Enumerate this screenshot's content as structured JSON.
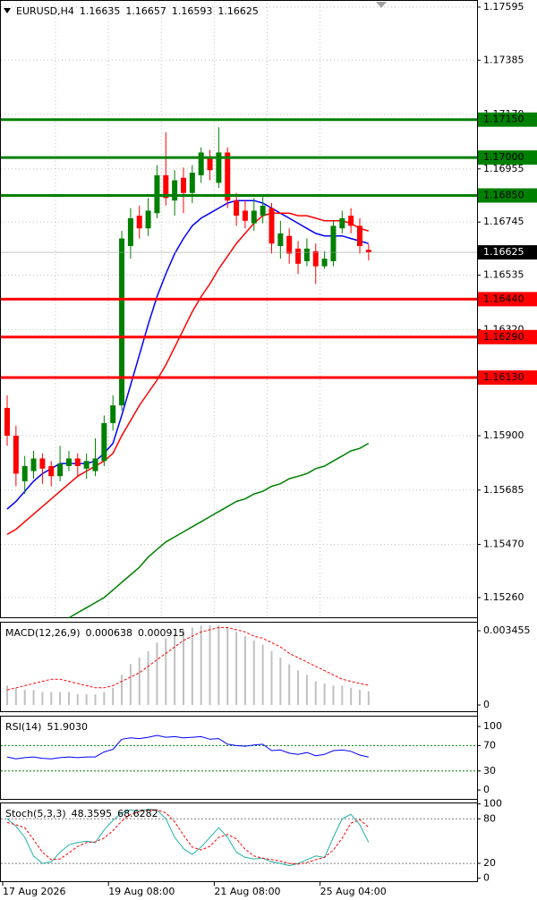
{
  "chart_data": [
    {
      "type": "candlestick",
      "title": "EURUSD,H4",
      "categories": [
        "17 Aug 2026",
        null,
        null,
        null,
        null,
        null,
        null,
        null,
        null,
        null,
        null,
        null,
        "19 Aug 08:00",
        null,
        null,
        null,
        null,
        null,
        null,
        null,
        null,
        null,
        null,
        null,
        "21 Aug 08:00",
        null,
        null,
        null,
        null,
        null,
        null,
        null,
        null,
        null,
        null,
        null,
        "25 Aug 04:00",
        null,
        null,
        null,
        null,
        null
      ],
      "ohlc": {
        "open": [
          1.1601,
          1.159,
          1.1572,
          1.1576,
          1.1581,
          1.1578,
          1.1574,
          1.1578,
          1.1581,
          1.1577,
          1.1576,
          1.158,
          1.1595,
          1.1602,
          1.1665,
          1.1677,
          1.1672,
          1.1678,
          1.1693,
          1.1683,
          1.1692,
          1.1686,
          1.1693,
          1.17,
          1.169,
          1.1702,
          1.1683,
          1.1679,
          1.1674,
          1.1677,
          1.168,
          1.1665,
          1.1669,
          1.1664,
          1.1659,
          1.1663,
          1.1657,
          1.1659,
          1.1672,
          1.1677,
          1.1673,
          1.16635
        ],
        "high": [
          1.1606,
          1.1594,
          1.1582,
          1.1584,
          1.1583,
          1.158,
          1.1586,
          1.1584,
          1.1583,
          1.1583,
          1.1589,
          1.1598,
          1.1606,
          1.1671,
          1.168,
          1.1681,
          1.1684,
          1.1697,
          1.171,
          1.1695,
          1.1696,
          1.1697,
          1.1704,
          1.1703,
          1.1712,
          1.1704,
          1.1686,
          1.1683,
          1.1684,
          1.1685,
          1.1682,
          1.1675,
          1.1672,
          1.1667,
          1.1668,
          1.1666,
          1.1663,
          1.1675,
          1.1679,
          1.168,
          1.1676,
          1.16657
        ],
        "low": [
          1.1586,
          1.157,
          1.1567,
          1.1573,
          1.1571,
          1.157,
          1.1572,
          1.1576,
          1.1574,
          1.1573,
          1.1574,
          1.1578,
          1.1592,
          1.16,
          1.166,
          1.1668,
          1.1669,
          1.1676,
          1.1681,
          1.1677,
          1.1678,
          1.1682,
          1.169,
          1.1691,
          1.1688,
          1.168,
          1.1673,
          1.1672,
          1.1671,
          1.1674,
          1.1662,
          1.166,
          1.1658,
          1.1654,
          1.1657,
          1.165,
          1.1656,
          1.1657,
          1.167,
          1.167,
          1.1662,
          1.16593
        ],
        "close": [
          1.159,
          1.1575,
          1.1578,
          1.1581,
          1.1577,
          1.1574,
          1.1579,
          1.1581,
          1.1578,
          1.158,
          1.1581,
          1.1595,
          1.1602,
          1.1668,
          1.1676,
          1.1672,
          1.1679,
          1.1693,
          1.1684,
          1.1691,
          1.1686,
          1.1694,
          1.1702,
          1.1695,
          1.1702,
          1.1683,
          1.1677,
          1.1675,
          1.1679,
          1.1681,
          1.1666,
          1.167,
          1.1662,
          1.1658,
          1.1664,
          1.1657,
          1.166,
          1.1673,
          1.1676,
          1.1673,
          1.1665,
          1.16625
        ]
      },
      "up_color": "#008000",
      "down_color": "#ff0000",
      "series": [
        {
          "color": "#0000ff",
          "values": [
            1.1561,
            1.1564,
            1.1568,
            1.1572,
            1.1575,
            1.1577,
            1.1579,
            1.1579,
            1.1579,
            1.1579,
            1.158,
            1.1583,
            1.1587,
            1.1598,
            1.161,
            1.1622,
            1.1634,
            1.1645,
            1.1654,
            1.1662,
            1.1668,
            1.1673,
            1.1676,
            1.1678,
            1.168,
            1.1682,
            1.1683,
            1.1683,
            1.1683,
            1.1682,
            1.168,
            1.1678,
            1.1676,
            1.1674,
            1.1672,
            1.167,
            1.1669,
            1.1669,
            1.1669,
            1.1668,
            1.1667,
            1.1666
          ]
        },
        {
          "color": "#ff0000",
          "values": [
            1.1551,
            1.1553,
            1.1556,
            1.1559,
            1.1562,
            1.1565,
            1.1568,
            1.1571,
            1.1574,
            1.1576,
            1.1578,
            1.158,
            1.1583,
            1.159,
            1.1596,
            1.1602,
            1.1607,
            1.1612,
            1.1618,
            1.1625,
            1.1632,
            1.1639,
            1.1645,
            1.165,
            1.1656,
            1.1661,
            1.1666,
            1.167,
            1.1674,
            1.1677,
            1.1678,
            1.1678,
            1.1678,
            1.1677,
            1.1677,
            1.1676,
            1.1675,
            1.1675,
            1.1675,
            1.1674,
            1.1672,
            1.1671
          ]
        },
        {
          "color": "#008000",
          "values": [
            null,
            null,
            null,
            null,
            null,
            null,
            null,
            1.1518,
            1.152,
            1.1522,
            1.1524,
            1.1526,
            1.1529,
            1.1532,
            1.1535,
            1.1538,
            1.1542,
            1.1545,
            1.1548,
            1.155,
            1.1552,
            1.1554,
            1.1556,
            1.1558,
            1.156,
            1.1562,
            1.1564,
            1.1565,
            1.1567,
            1.1568,
            1.157,
            1.1571,
            1.1573,
            1.1574,
            1.1575,
            1.1577,
            1.1578,
            1.158,
            1.1582,
            1.1584,
            1.1585,
            1.1587
          ]
        }
      ],
      "levels": [
        {
          "value": 1.1715,
          "label": "1.17150",
          "color": "#008000"
        },
        {
          "value": 1.17,
          "label": "1.17000",
          "color": "#008000"
        },
        {
          "value": 1.1685,
          "label": "1.16850",
          "color": "#008000"
        },
        {
          "value": 1.1644,
          "label": "1.16440",
          "color": "#ff0000"
        },
        {
          "value": 1.1629,
          "label": "1.16290",
          "color": "#ff0000"
        },
        {
          "value": 1.1613,
          "label": "1.16130",
          "color": "#ff0000"
        }
      ],
      "ylim": [
        1.15182,
        1.17623
      ],
      "yticks": [
        1.17595,
        1.17385,
        {
          "value": 1.1717,
          "label": "1.17170"
        },
        1.16955,
        1.16745,
        1.16535,
        {
          "value": 1.1632,
          "label": "1.16320"
        },
        {
          "value": 1.159,
          "label": "1.15900"
        },
        1.15685,
        {
          "value": 1.1547,
          "label": "1.15470"
        },
        {
          "value": 1.1526,
          "label": "1.15260"
        }
      ],
      "grid": true
    },
    {
      "type": "macd",
      "title": "MACD(12,26,9)",
      "histogram": {
        "color": "#c0c0c0",
        "values": [
          0.0009,
          0.0008,
          0.0007,
          0.0007,
          0.0006,
          0.0006,
          0.0006,
          0.0006,
          0.0005,
          0.0005,
          0.0005,
          0.0006,
          0.0008,
          0.0014,
          0.0019,
          0.0022,
          0.0025,
          0.0029,
          0.0031,
          0.0033,
          0.0035,
          0.0036,
          0.0037,
          0.0037,
          0.0037,
          0.0036,
          0.0034,
          0.0032,
          0.003,
          0.0028,
          0.0025,
          0.0022,
          0.0019,
          0.0016,
          0.0014,
          0.0011,
          0.001,
          0.0009,
          0.0009,
          0.0008,
          0.0007,
          0.000638
        ]
      },
      "series": [
        {
          "color": "#ff0000",
          "style": "dashed",
          "values": [
            0.0007,
            0.0008,
            0.0009,
            0.001,
            0.0011,
            0.0012,
            0.0012,
            0.0011,
            0.001,
            0.0009,
            0.0008,
            0.0008,
            0.0009,
            0.0011,
            0.0013,
            0.0015,
            0.0018,
            0.0021,
            0.0024,
            0.0027,
            0.003,
            0.0032,
            0.0034,
            0.0035,
            0.0036,
            0.0036,
            0.0035,
            0.0034,
            0.0032,
            0.0031,
            0.0029,
            0.0027,
            0.0024,
            0.0022,
            0.002,
            0.0018,
            0.0016,
            0.0014,
            0.0012,
            0.0011,
            0.001,
            0.000915
          ]
        }
      ],
      "ylim": [
        -0.00029,
        0.00387
      ],
      "yticks": [
        0.003455,
        0
      ]
    },
    {
      "type": "line",
      "title": "RSI(14)",
      "series": [
        {
          "color": "#0000ff",
          "values": [
            52,
            49,
            51,
            52,
            50,
            49,
            51,
            52,
            51,
            52,
            52,
            60,
            64,
            80,
            82,
            81,
            83,
            86,
            83,
            84,
            82,
            83,
            84,
            80,
            81,
            72,
            70,
            69,
            71,
            72,
            62,
            63,
            58,
            56,
            59,
            54,
            56,
            62,
            63,
            61,
            55,
            51.903
          ],
          "value_labels": [
            null,
            null,
            null,
            null,
            null,
            null,
            null,
            null,
            null,
            null,
            null,
            null,
            null,
            null,
            null,
            null,
            null,
            null,
            null,
            null,
            null,
            null,
            null,
            null,
            null,
            null,
            null,
            null,
            null,
            null,
            null,
            null,
            null,
            null,
            null,
            null,
            null,
            null,
            null,
            null,
            null,
            "51.9030"
          ]
        }
      ],
      "levels": [
        70,
        30
      ],
      "level_color": "#008000",
      "ylim": [
        -14,
        117
      ],
      "yticks": [
        100,
        70,
        30,
        0
      ]
    },
    {
      "type": "line",
      "title": "Stoch(5,3,3)",
      "series": [
        {
          "color": "#20b2aa",
          "values": [
            80,
            70,
            55,
            30,
            20,
            22,
            35,
            45,
            48,
            50,
            48,
            65,
            78,
            88,
            92,
            90,
            93,
            92,
            80,
            55,
            40,
            32,
            42,
            55,
            68,
            55,
            35,
            28,
            26,
            27,
            22,
            20,
            17,
            20,
            25,
            30,
            28,
            55,
            80,
            86,
            72,
            48.3595
          ]
        },
        {
          "color": "#ff0000",
          "style": "dashed",
          "values": [
            75,
            72,
            68,
            52,
            35,
            25,
            26,
            34,
            43,
            48,
            49,
            54,
            64,
            77,
            86,
            90,
            92,
            92,
            88,
            76,
            58,
            42,
            38,
            43,
            55,
            59,
            53,
            39,
            30,
            27,
            25,
            23,
            20,
            19,
            21,
            25,
            28,
            38,
            54,
            74,
            79,
            68.6282
          ]
        }
      ],
      "levels": [
        80,
        20
      ],
      "level_color": "#808080",
      "ylim": [
        -4,
        102
      ],
      "yticks": [
        100,
        80,
        20,
        0
      ]
    }
  ]
}
